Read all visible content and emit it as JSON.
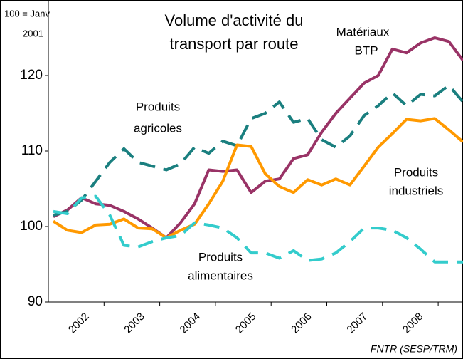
{
  "chart_data": {
    "type": "line",
    "title": [
      "Volume d'activité du",
      "transport par route"
    ],
    "y_label": [
      "100 = Janv",
      "2001"
    ],
    "source": "FNTR (SESP/TRM)",
    "x_labels": [
      "2002",
      "2003",
      "2004",
      "2005",
      "2006",
      "2007",
      "2008"
    ],
    "ylim": [
      90,
      130
    ],
    "yticks": [
      90,
      100,
      110,
      120
    ],
    "series": [
      {
        "label": [
          "Matériaux",
          "BTP"
        ],
        "color": "#993366",
        "dashed": false,
        "values": [
          101.3,
          102.2,
          103.8,
          103,
          102.8,
          102,
          101,
          99.8,
          98.5,
          100.5,
          103,
          107.5,
          107.3,
          107.5,
          104.5,
          106,
          106.3,
          109,
          109.5,
          112.5,
          115,
          117,
          119,
          120,
          123.5,
          123,
          124.3,
          125,
          124.5,
          122
        ]
      },
      {
        "label": [
          "Produits",
          "agricoles"
        ],
        "color": "#1a7f7f",
        "dashed": true,
        "values": [
          101.5,
          102,
          103.5,
          106,
          108.5,
          110.3,
          108.5,
          108,
          107.5,
          108.3,
          110.5,
          109.7,
          111.3,
          110.7,
          114.3,
          115,
          116.5,
          113.8,
          114.3,
          111.5,
          110.5,
          112,
          114.7,
          116,
          117.7,
          116,
          117.5,
          117.3,
          118.7,
          116.5
        ]
      },
      {
        "label": [
          "Produits",
          "industriels"
        ],
        "color": "#ff9900",
        "dashed": false,
        "values": [
          100.7,
          99.5,
          99.2,
          100.2,
          100.3,
          101,
          99.8,
          99.7,
          98.5,
          99.5,
          100.3,
          103,
          106,
          110.8,
          110.6,
          107,
          105.3,
          104.5,
          106.2,
          105.5,
          106.3,
          105.5,
          108,
          110.5,
          112.3,
          114.2,
          114,
          114.3,
          112.8,
          111.2
        ]
      },
      {
        "label": [
          "Produits",
          "alimentaires"
        ],
        "color": "#33cccc",
        "dashed": true,
        "values": [
          102,
          101.7,
          103.8,
          104,
          101.5,
          97.5,
          97.3,
          98,
          98.5,
          98.8,
          100.5,
          100.2,
          99.8,
          98.5,
          96.5,
          96.5,
          95.8,
          96.8,
          95.5,
          95.7,
          96.5,
          98,
          99.8,
          99.8,
          99.5,
          98.5,
          97,
          95.3,
          95.3,
          95.3
        ]
      }
    ]
  }
}
